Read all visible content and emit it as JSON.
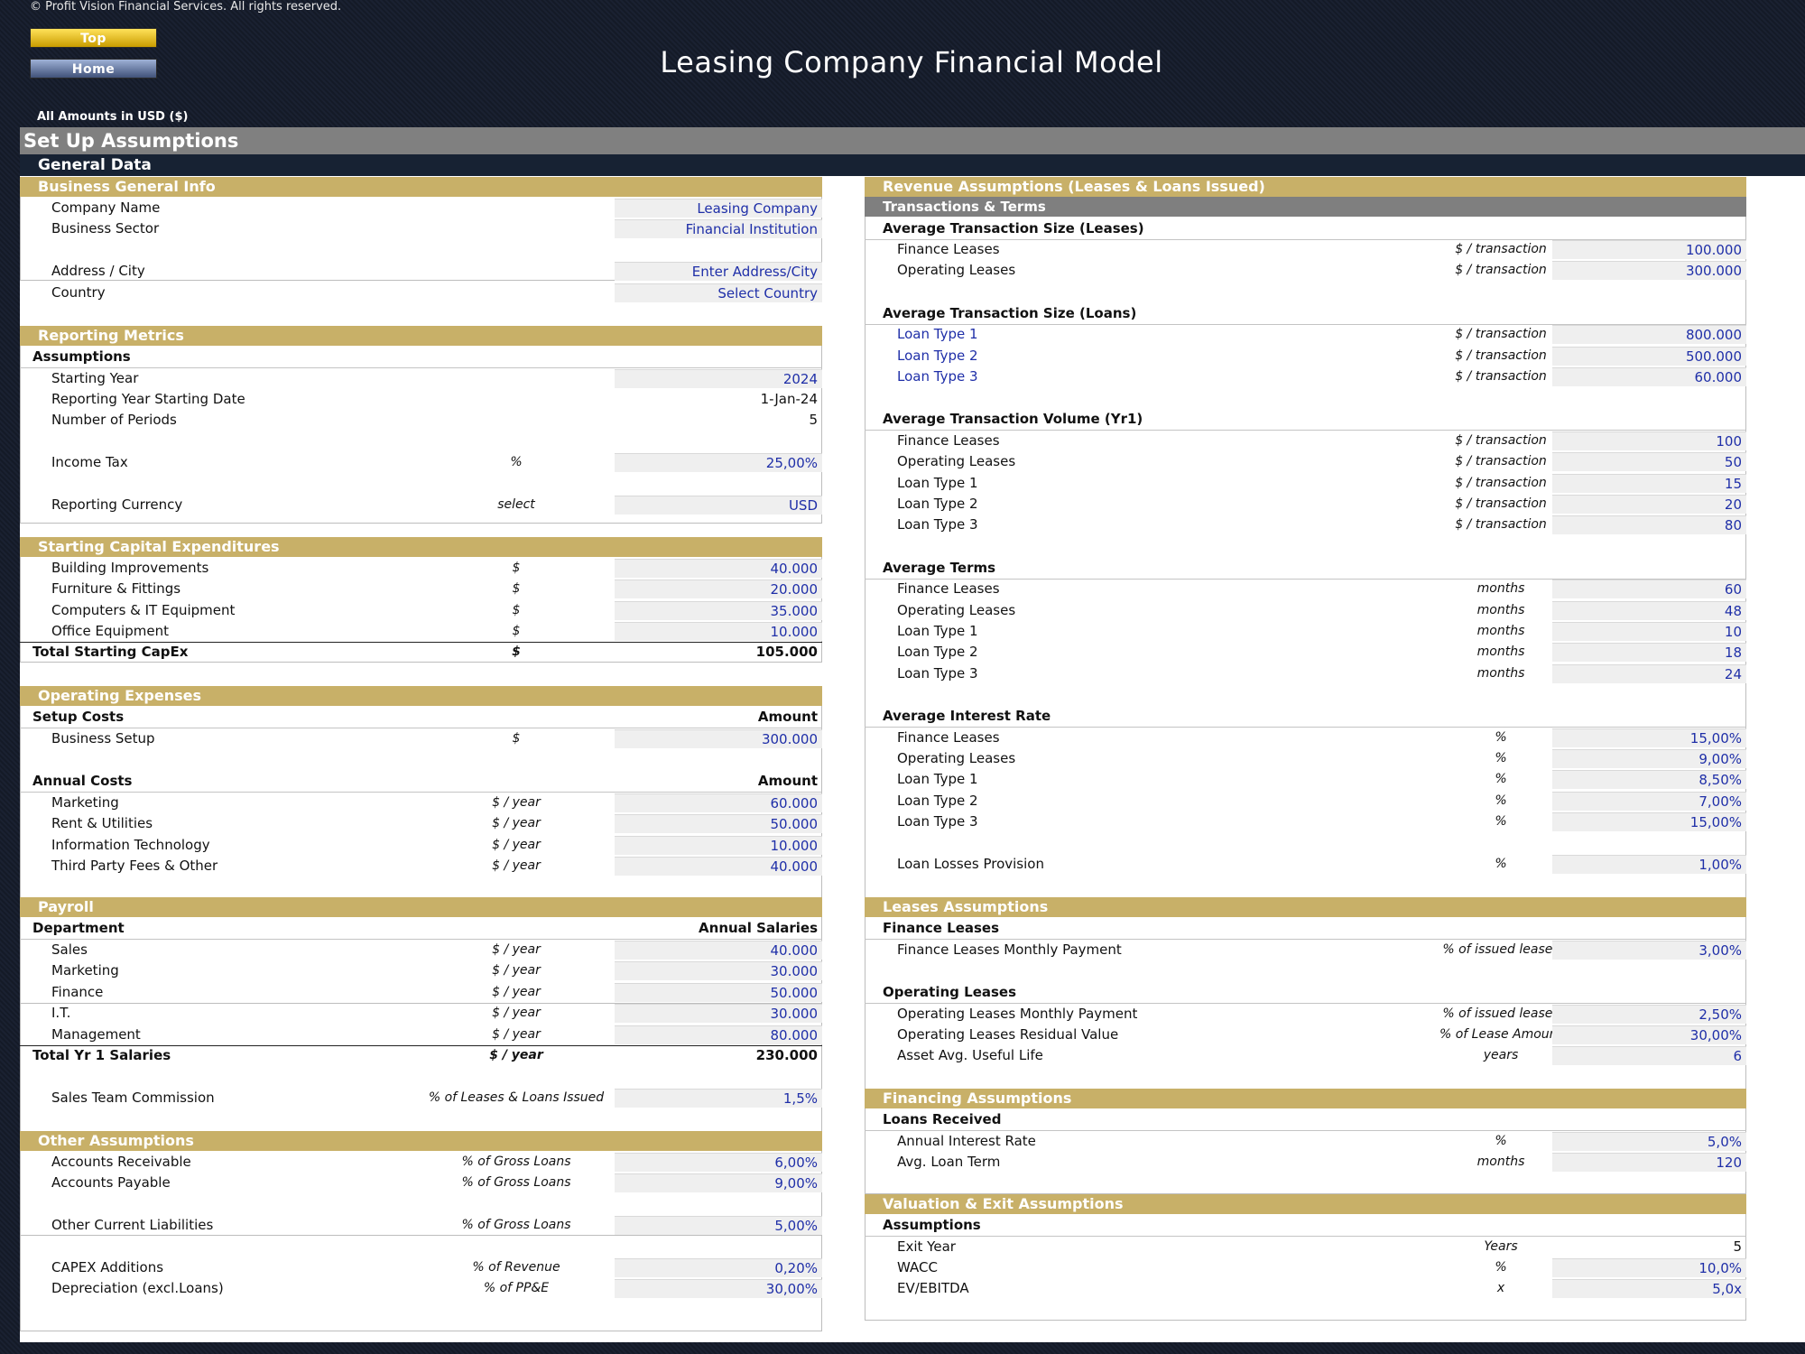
{
  "copyright": "© Profit Vision Financial Services. All rights reserved.",
  "nav": {
    "top": "Top",
    "home": "Home"
  },
  "title": "Leasing Company Financial Model",
  "amounts_label": "All Amounts in  USD ($)",
  "setup_title": "Set Up Assumptions",
  "general_title": "General Data",
  "business_info": {
    "title": "Business General Info",
    "rows": [
      {
        "label": "Company Name",
        "value": "Leasing Company"
      },
      {
        "label": "Business Sector",
        "value": "Financial Institution"
      },
      {
        "label": "Address / City",
        "value": "Enter Address/City"
      },
      {
        "label": "Country",
        "value": "Select Country"
      }
    ]
  },
  "reporting": {
    "title": "Reporting Metrics",
    "sub": "Assumptions",
    "rows": [
      {
        "label": "Starting Year",
        "unit": "",
        "value": "2024"
      },
      {
        "label": "Reporting Year Starting Date",
        "unit": "",
        "value": "1-Jan-24"
      },
      {
        "label": "Number of Periods",
        "unit": "",
        "value": "5"
      },
      {
        "label": "Income Tax",
        "unit": "%",
        "value": "25,00%"
      },
      {
        "label": "Reporting Currency",
        "unit": "select",
        "value": "USD"
      }
    ]
  },
  "capex": {
    "title": "Starting Capital Expenditures",
    "rows": [
      {
        "label": "Building Improvements",
        "unit": "$",
        "value": "40.000"
      },
      {
        "label": "Furniture & Fittings",
        "unit": "$",
        "value": "20.000"
      },
      {
        "label": "Computers & IT Equipment",
        "unit": "$",
        "value": "35.000"
      },
      {
        "label": "Office Equipment",
        "unit": "$",
        "value": "10.000"
      }
    ],
    "total": {
      "label": "Total Starting CapEx",
      "unit": "$",
      "value": "105.000"
    }
  },
  "opex": {
    "title": "Operating Expenses",
    "setup_sub": "Setup Costs",
    "amount_label": "Amount",
    "setup_rows": [
      {
        "label": "Business Setup",
        "unit": "$",
        "value": "300.000"
      }
    ],
    "annual_sub": "Annual Costs",
    "annual_rows": [
      {
        "label": "Marketing",
        "unit": "$ / year",
        "value": "60.000"
      },
      {
        "label": "Rent & Utilities",
        "unit": "$ / year",
        "value": "50.000"
      },
      {
        "label": "Information Technology",
        "unit": "$ / year",
        "value": "10.000"
      },
      {
        "label": "Third Party Fees & Other",
        "unit": "$ / year",
        "value": "40.000"
      }
    ]
  },
  "payroll": {
    "title": "Payroll",
    "dept_label": "Department",
    "salaries_label": "Annual Salaries",
    "rows": [
      {
        "label": "Sales",
        "unit": "$ / year",
        "value": "40.000"
      },
      {
        "label": "Marketing",
        "unit": "$ / year",
        "value": "30.000"
      },
      {
        "label": "Finance",
        "unit": "$ / year",
        "value": "50.000"
      },
      {
        "label": "I.T.",
        "unit": "$ / year",
        "value": "30.000"
      },
      {
        "label": "Management",
        "unit": "$ / year",
        "value": "80.000"
      }
    ],
    "total": {
      "label": "Total Yr 1 Salaries",
      "unit": "$ / year",
      "value": "230.000"
    },
    "commission": {
      "label": "Sales Team Commission",
      "unit": "% of Leases & Loans Issued",
      "value": "1,5%"
    }
  },
  "other": {
    "title": "Other Assumptions",
    "rows": [
      {
        "label": "Accounts Receivable",
        "unit": "% of Gross Loans",
        "value": "6,00%"
      },
      {
        "label": "Accounts Payable",
        "unit": "% of Gross Loans",
        "value": "9,00%"
      },
      {
        "label": "Other Current Liabilities",
        "unit": "% of Gross Loans",
        "value": "5,00%"
      },
      {
        "label": "CAPEX Additions",
        "unit": "% of Revenue",
        "value": "0,20%"
      },
      {
        "label": "Depreciation (excl.Loans)",
        "unit": "% of PP&E",
        "value": "30,00%"
      }
    ]
  },
  "revenue": {
    "title": "Revenue Assumptions (Leases & Loans Issued)",
    "sub": "Transactions & Terms",
    "size_leases": {
      "title": "Average Transaction Size (Leases)",
      "rows": [
        {
          "label": "Finance Leases",
          "unit": "$ / transaction",
          "value": "100.000"
        },
        {
          "label": "Operating Leases",
          "unit": "$ / transaction",
          "value": "300.000"
        }
      ]
    },
    "size_loans": {
      "title": "Average Transaction Size (Loans)",
      "rows": [
        {
          "label": "Loan Type 1",
          "unit": "$ / transaction",
          "value": "800.000"
        },
        {
          "label": "Loan Type 2",
          "unit": "$ / transaction",
          "value": "500.000"
        },
        {
          "label": "Loan Type 3",
          "unit": "$ / transaction",
          "value": "60.000"
        }
      ]
    },
    "volume": {
      "title": "Average Transaction Volume (Yr1)",
      "rows": [
        {
          "label": "Finance Leases",
          "unit": "$ / transaction",
          "value": "100"
        },
        {
          "label": "Operating Leases",
          "unit": "$ / transaction",
          "value": "50"
        },
        {
          "label": "Loan Type 1",
          "unit": "$ / transaction",
          "value": "15"
        },
        {
          "label": "Loan Type 2",
          "unit": "$ / transaction",
          "value": "20"
        },
        {
          "label": "Loan Type 3",
          "unit": "$ / transaction",
          "value": "80"
        }
      ]
    },
    "terms": {
      "title": "Average Terms",
      "rows": [
        {
          "label": "Finance Leases",
          "unit": "months",
          "value": "60"
        },
        {
          "label": "Operating Leases",
          "unit": "months",
          "value": "48"
        },
        {
          "label": "Loan Type 1",
          "unit": "months",
          "value": "10"
        },
        {
          "label": "Loan Type 2",
          "unit": "months",
          "value": "18"
        },
        {
          "label": "Loan Type 3",
          "unit": "months",
          "value": "24"
        }
      ]
    },
    "interest": {
      "title": "Average Interest Rate",
      "rows": [
        {
          "label": "Finance Leases",
          "unit": "%",
          "value": "15,00%"
        },
        {
          "label": "Operating Leases",
          "unit": "%",
          "value": "9,00%"
        },
        {
          "label": "Loan Type 1",
          "unit": "%",
          "value": "8,50%"
        },
        {
          "label": "Loan Type 2",
          "unit": "%",
          "value": "7,00%"
        },
        {
          "label": "Loan Type 3",
          "unit": "%",
          "value": "15,00%"
        }
      ]
    },
    "provision": {
      "label": "Loan Losses Provision",
      "unit": "%",
      "value": "1,00%"
    }
  },
  "leases": {
    "title": "Leases Assumptions",
    "finance_sub": "Finance Leases",
    "finance_rows": [
      {
        "label": "Finance Leases Monthly Payment",
        "unit": "% of issued leases",
        "value": "3,00%"
      }
    ],
    "operating_sub": "Operating Leases",
    "operating_rows": [
      {
        "label": "Operating Leases Monthly Payment",
        "unit": "% of issued leases",
        "value": "2,50%"
      },
      {
        "label": "Operating Leases Residual Value",
        "unit": "% of Lease Amount",
        "value": "30,00%"
      },
      {
        "label": "Asset Avg. Useful Life",
        "unit": "years",
        "value": "6"
      }
    ]
  },
  "financing": {
    "title": "Financing Assumptions",
    "sub": "Loans Received",
    "rows": [
      {
        "label": "Annual Interest Rate",
        "unit": "%",
        "value": "5,0%"
      },
      {
        "label": "Avg. Loan Term",
        "unit": "months",
        "value": "120"
      }
    ]
  },
  "valuation": {
    "title": "Valuation & Exit Assumptions",
    "sub": "Assumptions",
    "rows": [
      {
        "label": "Exit Year",
        "unit": "Years",
        "value": "5"
      },
      {
        "label": "WACC",
        "unit": "%",
        "value": "10,0%"
      },
      {
        "label": "EV/EBITDA",
        "unit": "x",
        "value": "5,0x"
      }
    ]
  }
}
